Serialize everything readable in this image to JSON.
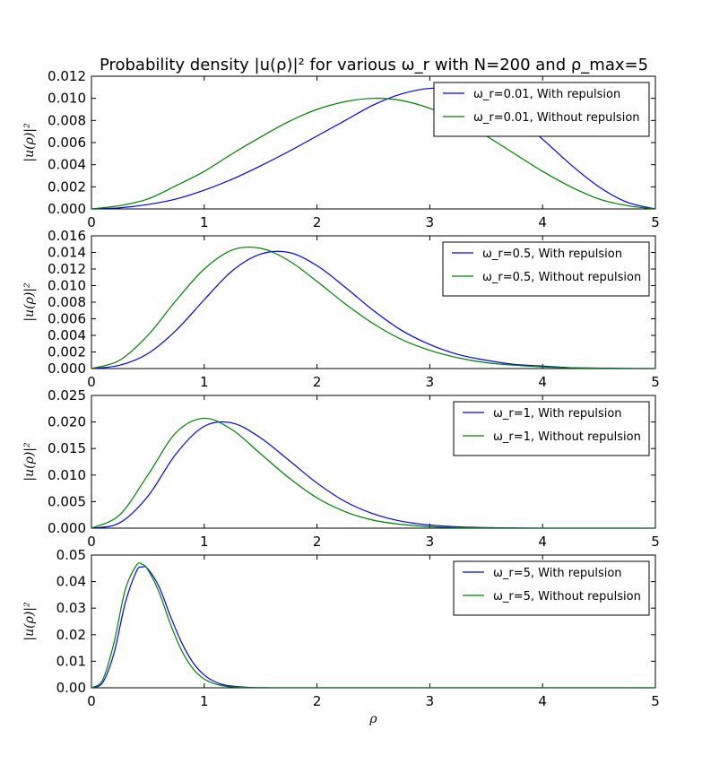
{
  "figure": {
    "title": "Probability density |u(ρ)|²  for various ω_r with N=200 and ρ_max=5"
  },
  "colors": {
    "with": "#0000ff",
    "without": "#008000"
  },
  "chart_data": [
    {
      "type": "line",
      "xlabel": "",
      "ylabel": "|u(ρ)|²",
      "xlim": [
        0,
        5
      ],
      "ylim": [
        0,
        0.012
      ],
      "x_ticks": [
        "0",
        "1",
        "2",
        "3",
        "4",
        "5"
      ],
      "y_ticks": [
        "0.000",
        "0.002",
        "0.004",
        "0.006",
        "0.008",
        "0.010",
        "0.012"
      ],
      "legend": "top-right",
      "series": [
        {
          "name": "ω_r=0.01, With repulsion",
          "color": "#0000ff",
          "x": [
            0,
            0.25,
            0.5,
            0.75,
            1.0,
            1.25,
            1.5,
            1.75,
            2.0,
            2.25,
            2.5,
            2.75,
            3.0,
            3.25,
            3.5,
            3.75,
            4.0,
            4.25,
            4.5,
            4.75,
            5.0
          ],
          "y": [
            0,
            0.0001,
            0.0004,
            0.0009,
            0.0017,
            0.0027,
            0.0039,
            0.0052,
            0.0066,
            0.008,
            0.0094,
            0.0104,
            0.0109,
            0.0108,
            0.01,
            0.0084,
            0.0063,
            0.004,
            0.002,
            0.0006,
            0
          ]
        },
        {
          "name": "ω_r=0.01, Without repulsion",
          "color": "#008000",
          "x": [
            0,
            0.25,
            0.5,
            0.75,
            1.0,
            1.25,
            1.5,
            1.75,
            2.0,
            2.25,
            2.5,
            2.75,
            3.0,
            3.25,
            3.5,
            3.75,
            4.0,
            4.25,
            4.5,
            4.75,
            5.0
          ],
          "y": [
            0,
            0.0003,
            0.0009,
            0.0021,
            0.0034,
            0.005,
            0.0065,
            0.0079,
            0.009,
            0.0097,
            0.01,
            0.0098,
            0.0091,
            0.008,
            0.0066,
            0.005,
            0.0034,
            0.002,
            0.0009,
            0.0003,
            0
          ]
        }
      ]
    },
    {
      "type": "line",
      "xlabel": "",
      "ylabel": "|u(ρ)|²",
      "xlim": [
        0,
        5
      ],
      "ylim": [
        0,
        0.016
      ],
      "x_ticks": [
        "0",
        "1",
        "2",
        "3",
        "4",
        "5"
      ],
      "y_ticks": [
        "0.000",
        "0.002",
        "0.004",
        "0.006",
        "0.008",
        "0.010",
        "0.012",
        "0.014",
        "0.016"
      ],
      "legend": "top-right",
      "series": [
        {
          "name": "ω_r=0.5, With repulsion",
          "color": "#0000ff",
          "x": [
            0,
            0.25,
            0.5,
            0.75,
            1.0,
            1.25,
            1.5,
            1.75,
            2.0,
            2.25,
            2.5,
            2.75,
            3.0,
            3.25,
            3.5,
            3.75,
            4.0,
            4.25,
            4.5,
            4.75,
            5.0
          ],
          "y": [
            0,
            0.0004,
            0.0018,
            0.0046,
            0.0083,
            0.0118,
            0.0138,
            0.014,
            0.0124,
            0.0098,
            0.007,
            0.0046,
            0.0029,
            0.0017,
            0.001,
            0.0005,
            0.0003,
            0.0001,
            6e-05,
            2e-05,
            0
          ]
        },
        {
          "name": "ω_r=0.5, Without repulsion",
          "color": "#008000",
          "x": [
            0,
            0.25,
            0.5,
            0.75,
            1.0,
            1.25,
            1.5,
            1.75,
            2.0,
            2.25,
            2.5,
            2.75,
            3.0,
            3.25,
            3.5,
            3.75,
            4.0,
            4.25,
            4.5,
            4.75,
            5.0
          ],
          "y": [
            0,
            0.001,
            0.004,
            0.0082,
            0.012,
            0.0143,
            0.0145,
            0.013,
            0.0105,
            0.0078,
            0.0054,
            0.0035,
            0.0022,
            0.0013,
            0.0007,
            0.0004,
            0.0002,
            0.0001,
            3e-05,
            1e-05,
            0
          ]
        }
      ]
    },
    {
      "type": "line",
      "xlabel": "",
      "ylabel": "|u(ρ)|²",
      "xlim": [
        0,
        5
      ],
      "ylim": [
        0,
        0.025
      ],
      "x_ticks": [
        "0",
        "1",
        "2",
        "3",
        "4",
        "5"
      ],
      "y_ticks": [
        "0.000",
        "0.005",
        "0.010",
        "0.015",
        "0.020",
        "0.025"
      ],
      "legend": "top-right",
      "series": [
        {
          "name": "ω_r=1, With repulsion",
          "color": "#0000ff",
          "x": [
            0,
            0.25,
            0.5,
            0.75,
            1.0,
            1.25,
            1.5,
            1.75,
            2.0,
            2.25,
            2.5,
            2.75,
            3.0,
            3.25,
            3.5,
            3.75,
            4.0,
            4.5,
            5.0
          ],
          "y": [
            0,
            0.001,
            0.006,
            0.014,
            0.0192,
            0.0198,
            0.017,
            0.0128,
            0.0085,
            0.005,
            0.0027,
            0.0013,
            0.0006,
            0.00025,
            0.0001,
            4e-05,
            1e-05,
            0,
            0
          ]
        },
        {
          "name": "ω_r=1, Without repulsion",
          "color": "#008000",
          "x": [
            0,
            0.25,
            0.5,
            0.75,
            1.0,
            1.25,
            1.5,
            1.75,
            2.0,
            2.25,
            2.5,
            2.75,
            3.0,
            3.25,
            3.5,
            3.75,
            4.0,
            4.5,
            5.0
          ],
          "y": [
            0,
            0.0025,
            0.01,
            0.018,
            0.0207,
            0.0185,
            0.014,
            0.0095,
            0.0057,
            0.0031,
            0.0015,
            0.0007,
            0.0003,
            0.0001,
            4e-05,
            1e-05,
            0,
            0,
            0
          ]
        }
      ]
    },
    {
      "type": "line",
      "xlabel": "ρ",
      "ylabel": "|u(ρ)|²",
      "xlim": [
        0,
        5
      ],
      "ylim": [
        0,
        0.05
      ],
      "x_ticks": [
        "0",
        "1",
        "2",
        "3",
        "4",
        "5"
      ],
      "y_ticks": [
        "0.00",
        "0.01",
        "0.02",
        "0.03",
        "0.04",
        "0.05"
      ],
      "legend": "top-right",
      "series": [
        {
          "name": "ω_r=5, With repulsion",
          "color": "#0000ff",
          "x": [
            0,
            0.1,
            0.2,
            0.3,
            0.4,
            0.45,
            0.5,
            0.6,
            0.7,
            0.8,
            0.9,
            1.0,
            1.1,
            1.2,
            1.4,
            1.6,
            1.8,
            2.0,
            3.0,
            4.0,
            5.0
          ],
          "y": [
            0,
            0.002,
            0.013,
            0.032,
            0.044,
            0.0455,
            0.0448,
            0.038,
            0.027,
            0.017,
            0.0095,
            0.0048,
            0.0022,
            0.0009,
            0.00015,
            2e-05,
            0,
            0,
            0,
            0,
            0
          ]
        },
        {
          "name": "ω_r=5, Without repulsion",
          "color": "#008000",
          "x": [
            0,
            0.1,
            0.2,
            0.3,
            0.4,
            0.45,
            0.5,
            0.6,
            0.7,
            0.8,
            0.9,
            1.0,
            1.1,
            1.2,
            1.4,
            1.6,
            1.8,
            2.0,
            3.0,
            4.0,
            5.0
          ],
          "y": [
            0,
            0.003,
            0.017,
            0.037,
            0.0462,
            0.0465,
            0.0445,
            0.036,
            0.024,
            0.014,
            0.0072,
            0.0033,
            0.0014,
            0.0005,
            6e-05,
            0,
            0,
            0,
            0,
            0,
            0
          ]
        }
      ]
    }
  ]
}
